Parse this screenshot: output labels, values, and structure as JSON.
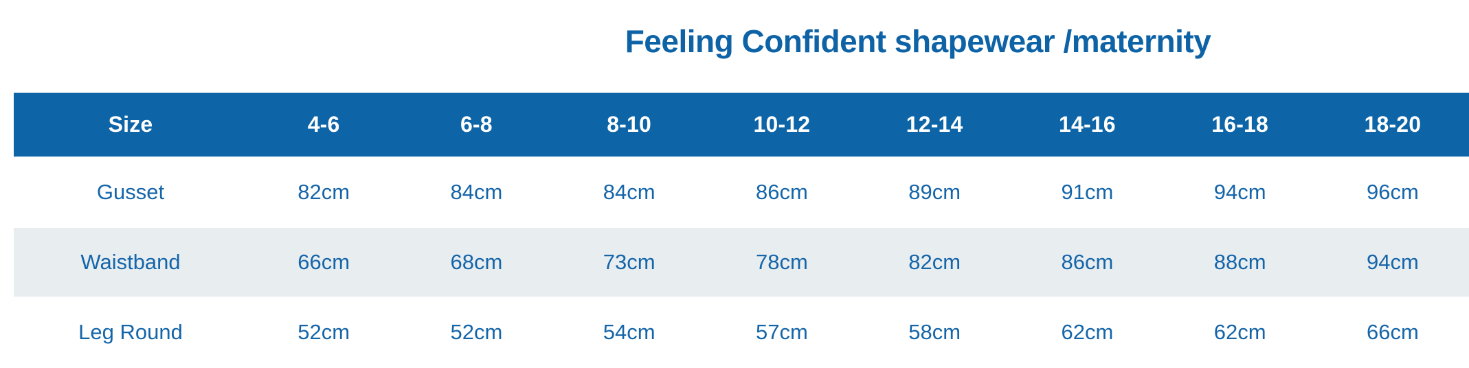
{
  "title": "Feeling Confident shapewear /maternity",
  "colors": {
    "title_text": "#0e63a6",
    "header_bg": "#0d64a6",
    "header_text": "#ffffff",
    "cell_text": "#1565a9",
    "stripe_bg": "#e8edf0",
    "page_bg": "#ffffff"
  },
  "table": {
    "columns": [
      "Size",
      "4-6",
      "6-8",
      "8-10",
      "10-12",
      "12-14",
      "14-16",
      "16-18",
      "18-20"
    ],
    "rows": [
      {
        "label": "Gusset",
        "values": [
          "82cm",
          "84cm",
          "84cm",
          "86cm",
          "89cm",
          "91cm",
          "94cm",
          "96cm"
        ]
      },
      {
        "label": "Waistband",
        "values": [
          "66cm",
          "68cm",
          "73cm",
          "78cm",
          "82cm",
          "86cm",
          "88cm",
          "94cm"
        ]
      },
      {
        "label": "Leg Round",
        "values": [
          "52cm",
          "52cm",
          "54cm",
          "57cm",
          "58cm",
          "62cm",
          "62cm",
          "66cm"
        ]
      }
    ]
  }
}
